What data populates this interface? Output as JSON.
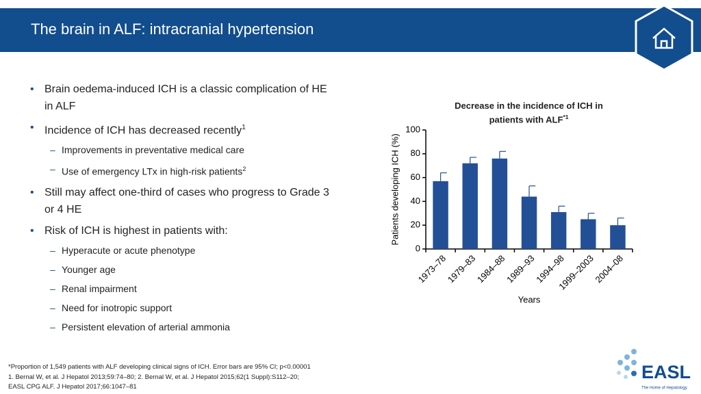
{
  "header": {
    "title": "The brain in ALF: intracranial hypertension"
  },
  "bullets": [
    {
      "text": "Brain oedema-induced ICH is a classic complication of HE in ALF"
    },
    {
      "text": "Incidence of ICH has decreased recently",
      "sup": "1",
      "sub": [
        {
          "text": "Improvements in preventative medical care"
        },
        {
          "text": "Use of emergency LTx in high-risk patients",
          "sup": "2"
        }
      ]
    },
    {
      "text": "Still may affect one-third of cases who progress to Grade 3 or 4 HE"
    },
    {
      "text": "Risk of ICH is highest in patients with:",
      "sub": [
        {
          "text": "Hyperacute or acute phenotype"
        },
        {
          "text": "Younger age"
        },
        {
          "text": "Renal impairment"
        },
        {
          "text": "Need for inotropic support"
        },
        {
          "text": "Persistent elevation of arterial ammonia"
        }
      ]
    }
  ],
  "chart_data": {
    "type": "bar",
    "title": "Decrease in the incidence of ICH in patients with ALF",
    "title_sup": "*1",
    "x_label": "Years",
    "y_label": "Patients developing ICH (%)",
    "categories": [
      "1973–78",
      "1979–83",
      "1984–88",
      "1989–93",
      "1994–98",
      "1999–2003",
      "2004–08"
    ],
    "values": [
      57,
      72,
      76,
      44,
      31,
      25,
      20
    ],
    "errors": [
      7,
      5,
      6,
      9,
      5,
      5,
      6
    ],
    "color": "#234f96",
    "ylim": [
      0,
      100
    ],
    "yticks": [
      0,
      20,
      40,
      60,
      80,
      100
    ]
  },
  "footnotes": [
    "*Proportion of 1,549 patients with ALF developing clinical signs of ICH. Error bars are 95% CI; p<0.00001",
    "1. Bernal W, et al. J Hepatol 2013;59:74–80; 2. Bernal W, et al. J Hepatol 2015;62(1 Suppl):S112–20;",
    "EASL CPG ALF. J Hepatol 2017;66:1047–81"
  ],
  "logo": {
    "name": "EASL",
    "tagline": "The Home of Hepatology"
  }
}
